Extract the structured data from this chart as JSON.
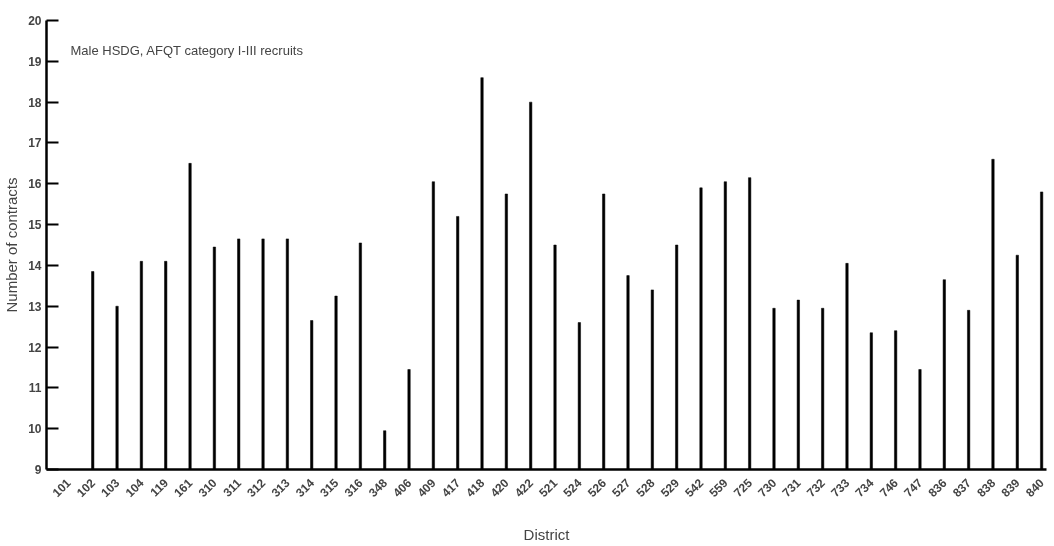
{
  "chart_data": {
    "type": "bar",
    "xlabel": "District",
    "ylabel": "Number of contracts",
    "annotations": [
      "Male HSDG, AFQT category I-III recruits"
    ],
    "categories": [
      "101",
      "102",
      "103",
      "104",
      "119",
      "161",
      "310",
      "311",
      "312",
      "313",
      "314",
      "315",
      "316",
      "348",
      "406",
      "409",
      "417",
      "418",
      "420",
      "422",
      "521",
      "524",
      "526",
      "527",
      "528",
      "529",
      "542",
      "559",
      "725",
      "730",
      "731",
      "732",
      "733",
      "734",
      "746",
      "747",
      "836",
      "837",
      "838",
      "839",
      "840"
    ],
    "values": [
      null,
      13.85,
      13.0,
      14.1,
      14.1,
      16.5,
      14.45,
      14.65,
      14.65,
      14.65,
      12.65,
      13.25,
      14.55,
      9.95,
      11.45,
      16.05,
      15.2,
      18.6,
      15.75,
      18.0,
      14.5,
      12.6,
      15.75,
      13.75,
      13.4,
      14.5,
      15.9,
      16.05,
      16.15,
      12.95,
      13.15,
      12.95,
      14.05,
      12.35,
      12.4,
      11.45,
      13.65,
      12.9,
      16.6,
      14.25,
      15.8
    ],
    "color": "#000000",
    "ylim": [
      9,
      20
    ],
    "yticks": [
      9,
      10,
      11,
      12,
      13,
      14,
      15,
      16,
      17,
      18,
      19,
      20
    ],
    "grid": false
  }
}
